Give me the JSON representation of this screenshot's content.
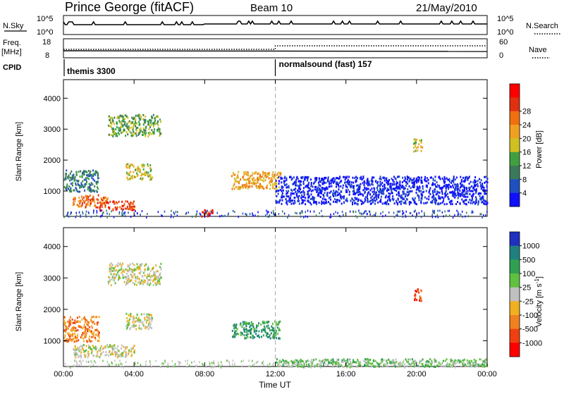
{
  "header": {
    "station": "Prince George (fitACF)",
    "beam": "Beam 10",
    "date": "21/May/2010"
  },
  "status_panels": {
    "nsky_label": "N.Sky",
    "nsky_ticks": [
      "10^5",
      "10^0"
    ],
    "nsearch_label": "N.Search",
    "nsearch_ticks": [
      "10^5",
      "10^0"
    ],
    "freq_label": "Freq.",
    "freq_unit": "[MHz]",
    "freq_ticks": [
      "18",
      "8"
    ],
    "nave_label": "Nave",
    "nave_ticks": [
      "60",
      "0"
    ],
    "cpid_label": "CPID",
    "cpid_modes": [
      {
        "label": "themis 3300",
        "start_hour": 0
      },
      {
        "label": "normalsound (fast) 157",
        "start_hour": 12
      }
    ]
  },
  "chart_data": [
    {
      "type": "heatmap",
      "name": "power",
      "ylabel": "Slant Range [km]",
      "ylim": [
        180,
        4600
      ],
      "yticks": [
        1000,
        2000,
        3000,
        4000
      ],
      "xlim": [
        0,
        24
      ],
      "xticks": [
        "00:00",
        "04:00",
        "08:00",
        "12:00",
        "16:00",
        "20:00",
        "00:00"
      ],
      "colorbar": {
        "label": "Power [dB]",
        "ticks": [
          "4",
          "8",
          "12",
          "16",
          "20",
          "24",
          "28"
        ],
        "colors": [
          "#1010ff",
          "#2050c0",
          "#3a7a5a",
          "#40a040",
          "#d0c020",
          "#f0a020",
          "#f07010",
          "#e03010",
          "#ff0000"
        ]
      },
      "regions": [
        {
          "hours": [
            0.0,
            2.0
          ],
          "range_km": [
            1000,
            1700
          ],
          "level": 2
        },
        {
          "hours": [
            0.5,
            2.5
          ],
          "range_km": [
            500,
            900
          ],
          "level": 6
        },
        {
          "hours": [
            2.0,
            4.0
          ],
          "range_km": [
            400,
            700
          ],
          "level": 7
        },
        {
          "hours": [
            3.5,
            5.0
          ],
          "range_km": [
            1400,
            1900
          ],
          "level": 4
        },
        {
          "hours": [
            2.5,
            5.5
          ],
          "range_km": [
            2800,
            3500
          ],
          "level": 3
        },
        {
          "hours": [
            7.8,
            8.5
          ],
          "range_km": [
            200,
            450
          ],
          "level": 8
        },
        {
          "hours": [
            9.5,
            12.3
          ],
          "range_km": [
            1100,
            1650
          ],
          "level": 5
        },
        {
          "hours": [
            12.0,
            24.0
          ],
          "range_km": [
            600,
            1500
          ],
          "level": 0
        },
        {
          "hours": [
            19.8,
            20.3
          ],
          "range_km": [
            2300,
            2700
          ],
          "level": 4
        }
      ]
    },
    {
      "type": "heatmap",
      "name": "velocity",
      "ylabel": "Slant Range [km]",
      "ylim": [
        180,
        4600
      ],
      "yticks": [
        1000,
        2000,
        3000,
        4000
      ],
      "xlim": [
        0,
        24
      ],
      "xticks": [
        "00:00",
        "04:00",
        "08:00",
        "12:00",
        "16:00",
        "20:00",
        "00:00"
      ],
      "xlabel": "Time UT",
      "colorbar": {
        "label": "Velocity [m s^-1]",
        "ticks": [
          "1000",
          "500",
          "100",
          "25",
          "-25",
          "-100",
          "-500",
          "-1000"
        ],
        "colors": [
          "#2030c0",
          "#208080",
          "#30a050",
          "#60c040",
          "#c0c0c0",
          "#f0b020",
          "#f08020",
          "#f04010",
          "#ff0000"
        ]
      },
      "regions": [
        {
          "hours": [
            0.0,
            2.0
          ],
          "range_km": [
            1000,
            1800
          ],
          "level": 6
        },
        {
          "hours": [
            0.5,
            4.0
          ],
          "range_km": [
            500,
            900
          ],
          "level": 4
        },
        {
          "hours": [
            3.5,
            5.0
          ],
          "range_km": [
            1400,
            1900
          ],
          "level": 4
        },
        {
          "hours": [
            2.5,
            5.5
          ],
          "range_km": [
            2800,
            3500
          ],
          "level": 4
        },
        {
          "hours": [
            9.5,
            12.3
          ],
          "range_km": [
            1100,
            1650
          ],
          "level": 2
        },
        {
          "hours": [
            12.0,
            24.0
          ],
          "range_km": [
            200,
            450
          ],
          "level": 3
        },
        {
          "hours": [
            19.8,
            20.3
          ],
          "range_km": [
            2300,
            2700
          ],
          "level": 7
        }
      ]
    }
  ]
}
